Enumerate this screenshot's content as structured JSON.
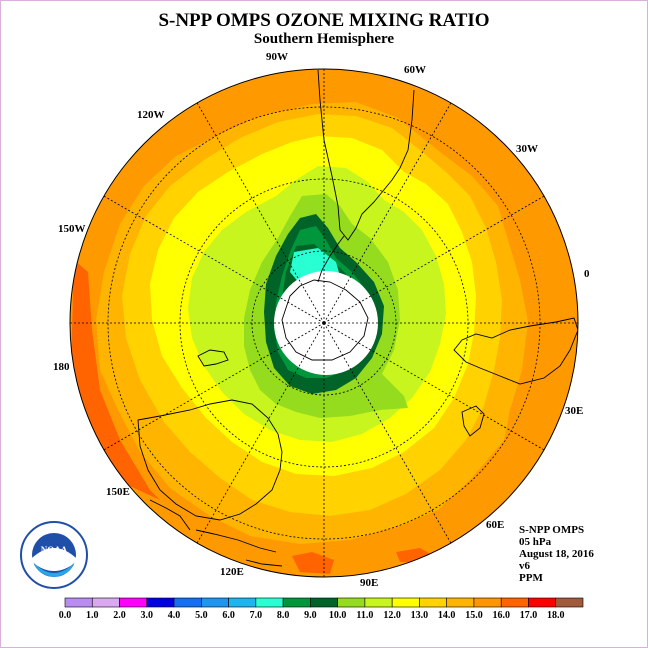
{
  "title": "S-NPP OMPS OZONE MIXING RATIO",
  "subtitle": "Southern Hemisphere",
  "longitude_labels": [
    "90W",
    "60W",
    "30W",
    "0",
    "30E",
    "60E",
    "90E",
    "120E",
    "150E",
    "180",
    "150W",
    "120W"
  ],
  "info": {
    "instrument": "S-NPP OMPS",
    "level": "05 hPa",
    "date": "August 18, 2016",
    "version": "v6",
    "units": "PPM"
  },
  "logo": {
    "text": "NOAA",
    "ring_text": "NATIONAL OCEANIC AND ATMOSPHERIC ADMINISTRATION U.S. DEPARTMENT OF COMMERCE"
  },
  "colorbar": {
    "ticks": [
      "0.0",
      "1.0",
      "2.0",
      "3.0",
      "4.0",
      "5.0",
      "6.0",
      "7.0",
      "8.0",
      "9.0",
      "10.0",
      "11.0",
      "12.0",
      "13.0",
      "14.0",
      "15.0",
      "16.0",
      "17.0",
      "18.0"
    ],
    "colors": [
      "#b98cf0",
      "#d9a8f0",
      "#ff00ff",
      "#0000e0",
      "#1470f0",
      "#1e96f0",
      "#1eb4f0",
      "#28ffd2",
      "#00963c",
      "#006428",
      "#96dc1e",
      "#c8f51e",
      "#ffff00",
      "#ffd200",
      "#ffb400",
      "#ff9600",
      "#ff6400",
      "#ff0000",
      "#a05a3c"
    ]
  },
  "colors": {
    "orange": "#ff9900",
    "light_orange": "#ffb400",
    "gold": "#ffd200",
    "yellow": "#ffff00",
    "yellow_green": "#c8f51e",
    "lime": "#96dc1e",
    "dark_green": "#006428",
    "green": "#00963c",
    "cyan": "#28ffd2",
    "red_orange": "#ff6400"
  }
}
